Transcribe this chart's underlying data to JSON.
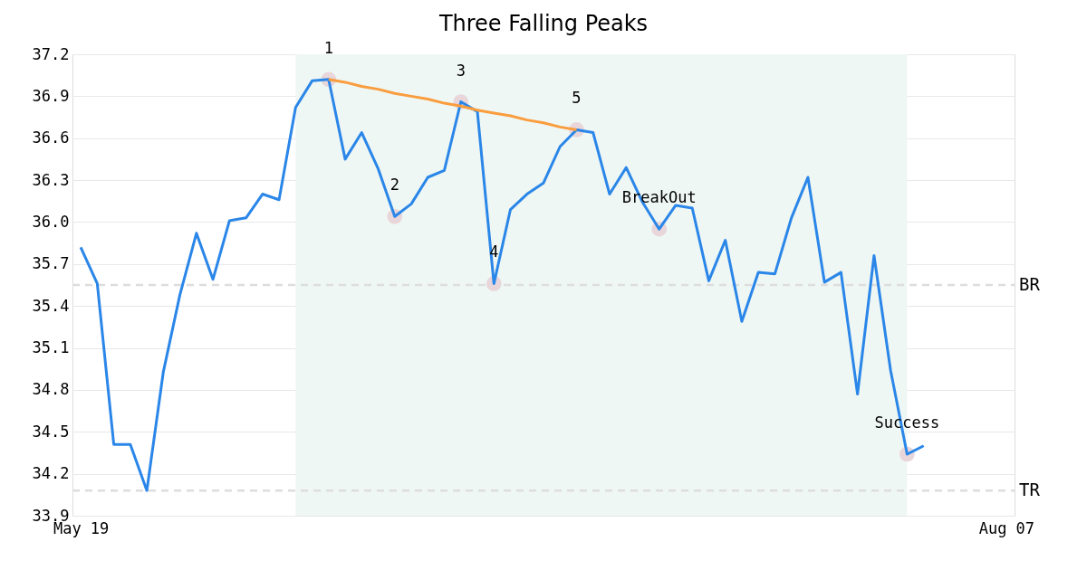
{
  "chart_data": {
    "type": "line",
    "title": "Three Falling Peaks",
    "categories": [
      "May 19",
      null,
      null,
      null,
      null,
      null,
      null,
      null,
      null,
      null,
      null,
      null,
      null,
      null,
      null,
      null,
      null,
      null,
      null,
      null,
      null,
      null,
      null,
      null,
      null,
      null,
      null,
      null,
      null,
      null,
      null,
      null,
      null,
      null,
      null,
      null,
      null,
      null,
      null,
      null,
      null,
      null,
      null,
      null,
      null,
      null,
      null,
      null,
      null,
      null,
      null,
      null,
      null,
      null,
      null,
      null,
      "Aug 07"
    ],
    "series": [
      {
        "color": "#2a86e8",
        "values": [
          35.82,
          35.56,
          34.41,
          34.41,
          34.08,
          34.93,
          35.48,
          35.92,
          35.59,
          36.01,
          36.03,
          36.2,
          36.16,
          36.82,
          37.01,
          37.02,
          36.45,
          36.64,
          36.38,
          36.04,
          36.13,
          36.32,
          36.37,
          36.86,
          36.79,
          35.56,
          36.09,
          36.2,
          36.28,
          36.54,
          36.66,
          36.64,
          36.2,
          36.39,
          36.14,
          35.95,
          36.12,
          36.1,
          35.58,
          35.87,
          35.29,
          35.64,
          35.63,
          36.03,
          36.32,
          35.57,
          35.64,
          34.77,
          35.76,
          34.94,
          34.34,
          34.4,
          null,
          null,
          null,
          null,
          null
        ]
      },
      {
        "type": "line",
        "color": "#f99d3e",
        "values": [
          null,
          null,
          null,
          null,
          null,
          null,
          null,
          null,
          null,
          null,
          null,
          null,
          null,
          null,
          null,
          37.02,
          37.0,
          36.97,
          36.95,
          36.92,
          36.9,
          36.88,
          36.85,
          36.83,
          36.8,
          36.78,
          36.76,
          36.73,
          36.71,
          36.68,
          36.66,
          null,
          null,
          null,
          null,
          null,
          null,
          null,
          null,
          null,
          null,
          null,
          null,
          null,
          null,
          null,
          null,
          null,
          null,
          null,
          null,
          null,
          null,
          null,
          null,
          null,
          null
        ]
      },
      {
        "type": "scatter",
        "color": "#000000",
        "values": [
          null,
          null,
          null,
          null,
          null,
          null,
          null,
          null,
          null,
          null,
          null,
          null,
          null,
          null,
          null,
          37.02,
          null,
          null,
          null,
          36.04,
          null,
          null,
          null,
          36.86,
          null,
          35.56,
          null,
          null,
          null,
          null,
          36.66,
          null,
          null,
          null,
          null,
          35.95,
          null,
          null,
          null,
          null,
          null,
          null,
          null,
          null,
          null,
          null,
          null,
          null,
          null,
          null,
          34.34,
          null,
          null,
          null,
          null,
          null,
          null
        ]
      }
    ],
    "ylim": [
      33.9,
      37.2
    ],
    "yticks": [
      33.9,
      34.2,
      34.5,
      34.8,
      35.1,
      35.4,
      35.7,
      {
        "value": 36,
        "label": "36.0"
      },
      36.3,
      36.6,
      36.9,
      37.2
    ],
    "grid": "y",
    "line_style": "solid",
    "annotations": [
      {
        "text": "1",
        "y": 37.02
      },
      {
        "text": "2",
        "y": 36.04
      },
      {
        "text": "3",
        "y": 36.86
      },
      {
        "text": "4",
        "y": 35.56
      },
      {
        "text": "5",
        "y": 36.66
      },
      {
        "text": "BreakOut",
        "y": 35.95
      },
      {
        "text": "Success",
        "y": 34.34
      }
    ],
    "ref_lines": [
      {
        "axis": "y",
        "value": 35.55,
        "label": "BR",
        "color": "#dddddd",
        "line_style": "dashed"
      },
      {
        "axis": "y",
        "value": 34.08,
        "label": "TR",
        "color": "#dddddd",
        "line_style": "dashed"
      }
    ]
  }
}
